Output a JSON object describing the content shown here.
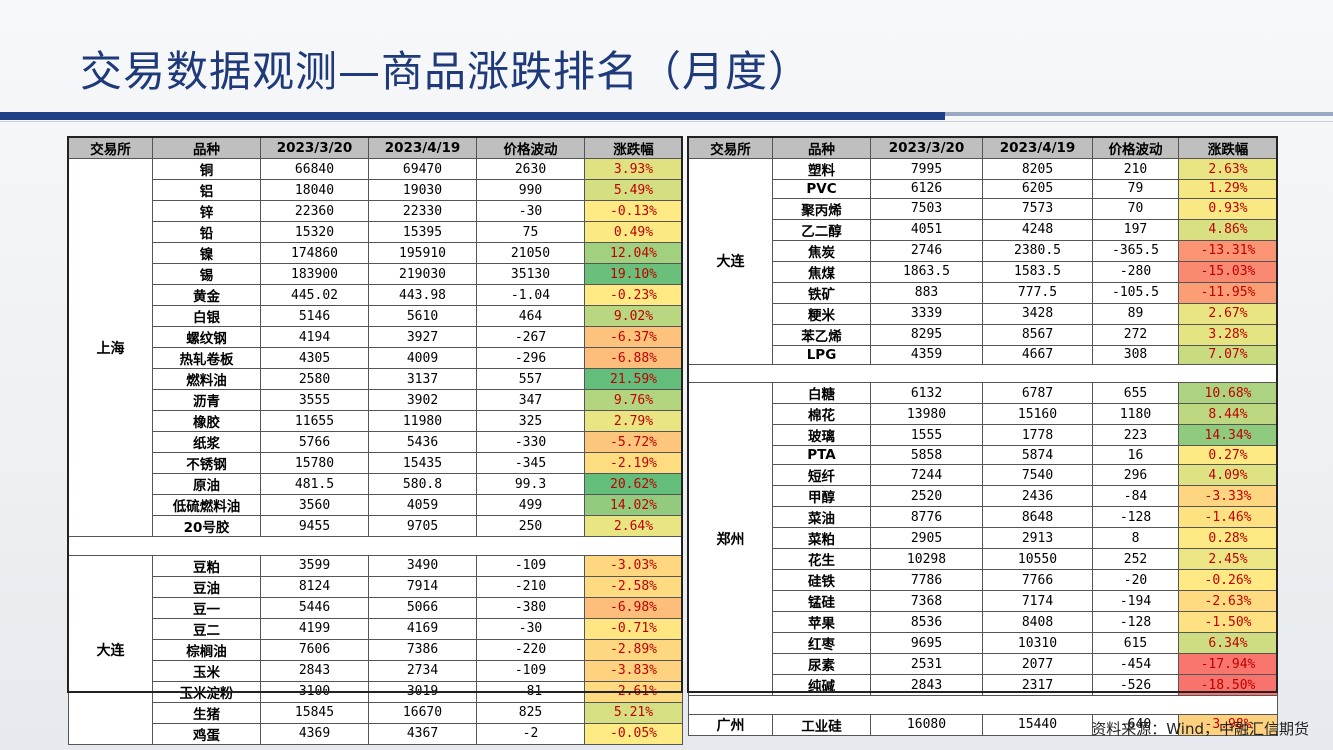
{
  "title": "交易数据观测—商品涨跌排名（月度）",
  "source": "资料来源：Wind，中融汇信期货",
  "headers": [
    "交易所",
    "品种",
    "2023/3/20",
    "2023/4/19",
    "价格波动",
    "涨跌幅"
  ],
  "left_groups": [
    {
      "exchange": "上海",
      "rows": [
        [
          "铜",
          "66840",
          "69470",
          "2630",
          "3.93%"
        ],
        [
          "铝",
          "18040",
          "19030",
          "990",
          "5.49%"
        ],
        [
          "锌",
          "22360",
          "22330",
          "-30",
          "-0.13%"
        ],
        [
          "铅",
          "15320",
          "15395",
          "75",
          "0.49%"
        ],
        [
          "镍",
          "174860",
          "195910",
          "21050",
          "12.04%"
        ],
        [
          "锡",
          "183900",
          "219030",
          "35130",
          "19.10%"
        ],
        [
          "黄金",
          "445.02",
          "443.98",
          "-1.04",
          "-0.23%"
        ],
        [
          "白银",
          "5146",
          "5610",
          "464",
          "9.02%"
        ],
        [
          "螺纹钢",
          "4194",
          "3927",
          "-267",
          "-6.37%"
        ],
        [
          "热轧卷板",
          "4305",
          "4009",
          "-296",
          "-6.88%"
        ],
        [
          "燃料油",
          "2580",
          "3137",
          "557",
          "21.59%"
        ],
        [
          "沥青",
          "3555",
          "3902",
          "347",
          "9.76%"
        ],
        [
          "橡胶",
          "11655",
          "11980",
          "325",
          "2.79%"
        ],
        [
          "纸浆",
          "5766",
          "5436",
          "-330",
          "-5.72%"
        ],
        [
          "不锈钢",
          "15780",
          "15435",
          "-345",
          "-2.19%"
        ],
        [
          "原油",
          "481.5",
          "580.8",
          "99.3",
          "20.62%"
        ],
        [
          "低硫燃料油",
          "3560",
          "4059",
          "499",
          "14.02%"
        ],
        [
          "20号胶",
          "9455",
          "9705",
          "250",
          "2.64%"
        ]
      ]
    },
    {
      "exchange": "大连",
      "rows": [
        [
          "豆粕",
          "3599",
          "3490",
          "-109",
          "-3.03%"
        ],
        [
          "豆油",
          "8124",
          "7914",
          "-210",
          "-2.58%"
        ],
        [
          "豆一",
          "5446",
          "5066",
          "-380",
          "-6.98%"
        ],
        [
          "豆二",
          "4199",
          "4169",
          "-30",
          "-0.71%"
        ],
        [
          "棕榈油",
          "7606",
          "7386",
          "-220",
          "-2.89%"
        ],
        [
          "玉米",
          "2843",
          "2734",
          "-109",
          "-3.83%"
        ],
        [
          "玉米淀粉",
          "3100",
          "3019",
          "-81",
          "-2.61%"
        ],
        [
          "生猪",
          "15845",
          "16670",
          "825",
          "5.21%"
        ],
        [
          "鸡蛋",
          "4369",
          "4367",
          "-2",
          "-0.05%"
        ]
      ]
    }
  ],
  "right_groups": [
    {
      "exchange": "大连",
      "rows": [
        [
          "塑料",
          "7995",
          "8205",
          "210",
          "2.63%"
        ],
        [
          "PVC",
          "6126",
          "6205",
          "79",
          "1.29%"
        ],
        [
          "聚丙烯",
          "7503",
          "7573",
          "70",
          "0.93%"
        ],
        [
          "乙二醇",
          "4051",
          "4248",
          "197",
          "4.86%"
        ],
        [
          "焦炭",
          "2746",
          "2380.5",
          "-365.5",
          "-13.31%"
        ],
        [
          "焦煤",
          "1863.5",
          "1583.5",
          "-280",
          "-15.03%"
        ],
        [
          "铁矿",
          "883",
          "777.5",
          "-105.5",
          "-11.95%"
        ],
        [
          "粳米",
          "3339",
          "3428",
          "89",
          "2.67%"
        ],
        [
          "苯乙烯",
          "8295",
          "8567",
          "272",
          "3.28%"
        ],
        [
          "LPG",
          "4359",
          "4667",
          "308",
          "7.07%"
        ]
      ]
    },
    {
      "exchange": "郑州",
      "rows": [
        [
          "白糖",
          "6132",
          "6787",
          "655",
          "10.68%"
        ],
        [
          "棉花",
          "13980",
          "15160",
          "1180",
          "8.44%"
        ],
        [
          "玻璃",
          "1555",
          "1778",
          "223",
          "14.34%"
        ],
        [
          "PTA",
          "5858",
          "5874",
          "16",
          "0.27%"
        ],
        [
          "短纤",
          "7244",
          "7540",
          "296",
          "4.09%"
        ],
        [
          "甲醇",
          "2520",
          "2436",
          "-84",
          "-3.33%"
        ],
        [
          "菜油",
          "8776",
          "8648",
          "-128",
          "-1.46%"
        ],
        [
          "菜粕",
          "2905",
          "2913",
          "8",
          "0.28%"
        ],
        [
          "花生",
          "10298",
          "10550",
          "252",
          "2.45%"
        ],
        [
          "硅铁",
          "7786",
          "7766",
          "-20",
          "-0.26%"
        ],
        [
          "锰硅",
          "7368",
          "7174",
          "-194",
          "-2.63%"
        ],
        [
          "苹果",
          "8536",
          "8408",
          "-128",
          "-1.50%"
        ],
        [
          "红枣",
          "9695",
          "10310",
          "615",
          "6.34%"
        ],
        [
          "尿素",
          "2531",
          "2077",
          "-454",
          "-17.94%"
        ],
        [
          "纯碱",
          "2843",
          "2317",
          "-526",
          "-18.50%"
        ]
      ]
    },
    {
      "exchange": "广州",
      "rows": [
        [
          "工业硅",
          "16080",
          "15440",
          "-640",
          "-3.98%"
        ]
      ]
    }
  ]
}
